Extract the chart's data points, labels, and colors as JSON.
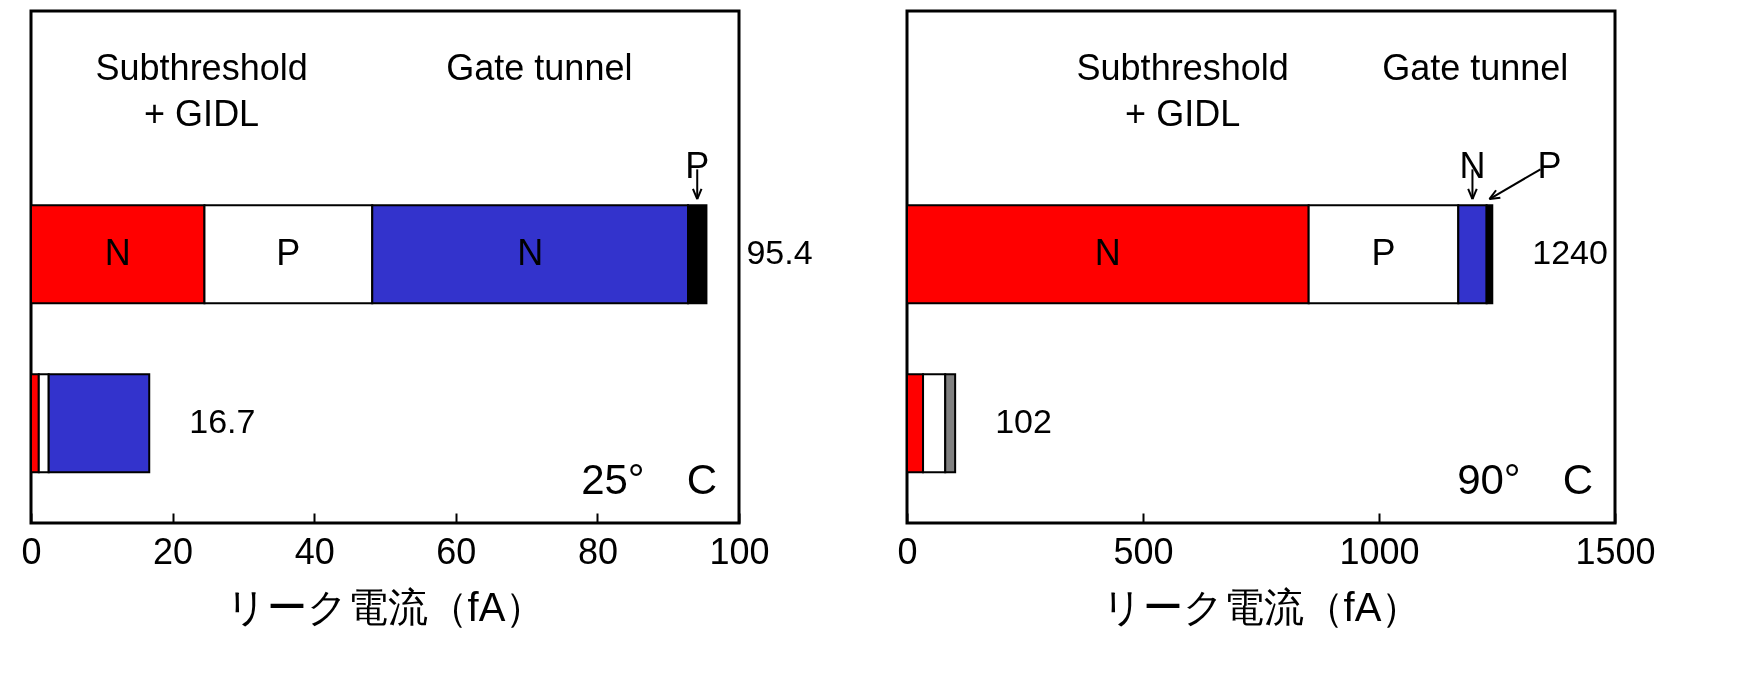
{
  "chart_data": [
    {
      "type": "bar",
      "orientation": "horizontal",
      "stacked": true,
      "categories": [
        null,
        null
      ],
      "series": [
        {
          "name": "N",
          "color": "#ff0000",
          "values": [
            24.5,
            1.1
          ]
        },
        {
          "name": "P",
          "color": "#ffffff",
          "values": [
            23.7,
            1.4
          ]
        },
        {
          "name": "N",
          "color": "#3333cc",
          "values": [
            44.6,
            14.2
          ]
        },
        {
          "name": "P",
          "color": "#000000",
          "values": [
            2.6,
            null
          ]
        }
      ],
      "totals": [
        "95.4",
        "16.7"
      ],
      "xlim": [
        0,
        100
      ],
      "xticks": [
        0,
        20,
        40,
        60,
        80,
        100
      ],
      "xlabel": "リーク電流（fA）",
      "grid": false,
      "legend": "top right",
      "annotations": [
        "Subthreshold\n+ GIDL",
        "Gate tunnel",
        "25°　C"
      ]
    },
    {
      "type": "bar",
      "orientation": "horizontal",
      "stacked": true,
      "categories": [
        null,
        null
      ],
      "series": [
        {
          "name": "N",
          "color": "#ff0000",
          "values": [
            851,
            34
          ]
        },
        {
          "name": "P",
          "color": "#ffffff",
          "values": [
            317,
            47
          ]
        },
        {
          "name": "N",
          "color": "#3333cc",
          "values": [
            60,
            null
          ]
        },
        {
          "name": "P",
          "color": "#000000",
          "values": [
            12,
            null
          ]
        },
        {
          "color": "#808080",
          "values": [
            null,
            21
          ]
        }
      ],
      "totals": [
        "1240",
        "102"
      ],
      "xlim": [
        0,
        1500
      ],
      "xticks": [
        0,
        500,
        1000,
        1500
      ],
      "xlabel": "リーク電流（fA）",
      "grid": false,
      "legend": "top right",
      "annotations": [
        "Subthreshold\n+ GIDL",
        "Gate tunnel",
        "90°　C"
      ]
    }
  ]
}
